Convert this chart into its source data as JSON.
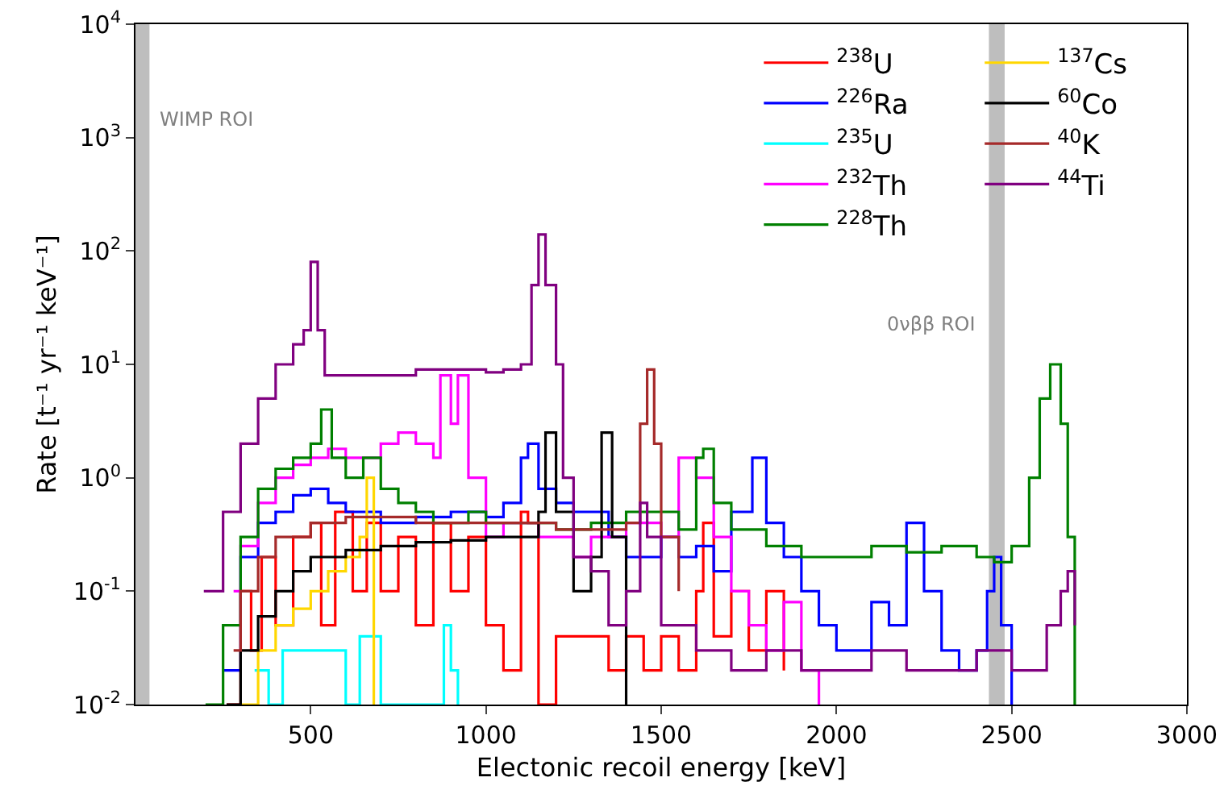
{
  "chart_data": {
    "type": "step",
    "xlabel": "Electonic recoil energy [keV]",
    "ylabel": "Rate [t⁻¹ yr⁻¹ keV⁻¹]",
    "log": "y",
    "xlim": [
      0,
      3000
    ],
    "xticks": [
      500,
      1000,
      1500,
      2000,
      2500,
      3000
    ],
    "ylim": [
      0.01,
      10000
    ],
    "yticks": [
      {
        "value": 0.01,
        "label": "10$^{-2}$"
      },
      {
        "value": 0.1,
        "label": "10$^{-1}$"
      },
      {
        "value": 1,
        "label": "10$^{0}$"
      },
      {
        "value": 10,
        "label": "10$^{1}$"
      },
      {
        "value": 100,
        "label": "10$^{2}$"
      },
      {
        "value": 1000,
        "label": "10$^{3}$"
      },
      {
        "value": 10000,
        "label": "10$^{4}$"
      }
    ],
    "grid": false,
    "legend": "top right",
    "bands": [
      {
        "axis": "x",
        "from": 0,
        "to": 40,
        "label": "WIMP ROI",
        "color": "#bebebe"
      },
      {
        "axis": "x",
        "from": 2435,
        "to": 2480,
        "label": "0νββ ROI",
        "color": "#bebebe"
      }
    ],
    "series": [
      {
        "name": "$^{238}$U",
        "color": "#ff0000",
        "x": [
          260,
          300,
          330,
          360,
          400,
          450,
          500,
          530,
          570,
          620,
          660,
          700,
          750,
          800,
          850,
          900,
          950,
          1000,
          1050,
          1100,
          1120,
          1150,
          1200,
          1300,
          1350,
          1400,
          1450,
          1500,
          1550,
          1600,
          1620,
          1650,
          1700,
          1750,
          1800,
          1850
        ],
        "values": [
          0.01,
          0.1,
          0.03,
          0.2,
          0.05,
          0.3,
          0.4,
          0.05,
          0.5,
          0.1,
          0.4,
          0.1,
          0.3,
          0.05,
          0.4,
          0.1,
          0.3,
          0.05,
          0.02,
          0.5,
          0.4,
          0.01,
          0.04,
          0.04,
          0.02,
          0.04,
          0.02,
          0.04,
          0.02,
          0.1,
          0.4,
          0.04,
          0.1,
          0.03,
          0.1,
          0.02
        ]
      },
      {
        "name": "$^{226}$Ra",
        "color": "#0000ff",
        "x": [
          250,
          300,
          350,
          400,
          450,
          500,
          550,
          600,
          700,
          800,
          900,
          1000,
          1050,
          1100,
          1120,
          1150,
          1200,
          1250,
          1300,
          1350,
          1400,
          1500,
          1550,
          1600,
          1650,
          1700,
          1760,
          1800,
          1850,
          1900,
          1950,
          2000,
          2050,
          2100,
          2150,
          2200,
          2250,
          2300,
          2350,
          2400,
          2430,
          2450,
          2470,
          2500
        ],
        "values": [
          0.02,
          0.2,
          0.4,
          0.5,
          0.7,
          0.8,
          0.6,
          0.5,
          0.4,
          0.45,
          0.5,
          0.45,
          0.6,
          1.5,
          2,
          0.8,
          0.6,
          0.5,
          0.5,
          0.3,
          0.2,
          0.3,
          0.2,
          0.25,
          0.15,
          0.5,
          1.5,
          0.4,
          0.2,
          0.1,
          0.05,
          0.03,
          0.03,
          0.08,
          0.05,
          0.4,
          0.1,
          0.03,
          0.02,
          0.03,
          0.1,
          0.2,
          0.05,
          0.01
        ]
      },
      {
        "name": "$^{235}$U",
        "color": "#00ffff",
        "x": [
          340,
          380,
          420,
          600,
          640,
          700,
          880,
          900,
          920
        ],
        "values": [
          0.02,
          0.01,
          0.03,
          0.01,
          0.04,
          0.01,
          0.05,
          0.02,
          0.01
        ]
      },
      {
        "name": "$^{232}$Th",
        "color": "#ff00ff",
        "x": [
          280,
          300,
          350,
          400,
          450,
          500,
          550,
          600,
          650,
          700,
          750,
          800,
          850,
          870,
          900,
          920,
          950,
          1000,
          1050,
          1100,
          1150,
          1200,
          1250,
          1300,
          1400,
          1500,
          1550,
          1600,
          1650,
          1700,
          1750,
          1800,
          1850,
          1900,
          1950
        ],
        "values": [
          0.1,
          0.25,
          0.6,
          1,
          1.3,
          1.5,
          1.8,
          1.5,
          1.5,
          2,
          2.5,
          2,
          1.5,
          8,
          3,
          8,
          1,
          0.3,
          0.4,
          0.4,
          0.3,
          0.3,
          0.2,
          0.3,
          0.4,
          0.3,
          1.5,
          1,
          0.3,
          0.1,
          0.05,
          0.03,
          0.08,
          0.02,
          0.01
        ]
      },
      {
        "name": "$^{228}$Th",
        "color": "#008000",
        "x": [
          200,
          250,
          300,
          350,
          400,
          450,
          500,
          530,
          560,
          600,
          650,
          700,
          750,
          800,
          850,
          900,
          950,
          1000,
          1100,
          1200,
          1300,
          1400,
          1500,
          1550,
          1600,
          1620,
          1650,
          1700,
          1800,
          1900,
          2000,
          2100,
          2200,
          2300,
          2400,
          2450,
          2500,
          2550,
          2580,
          2610,
          2640,
          2660,
          2680
        ],
        "values": [
          0.01,
          0.05,
          0.3,
          0.8,
          1.2,
          1.5,
          2,
          4,
          1.5,
          1,
          1.5,
          0.8,
          0.6,
          0.5,
          0.4,
          0.4,
          0.5,
          0.4,
          0.4,
          0.35,
          0.4,
          0.5,
          0.5,
          0.35,
          1.5,
          1.8,
          0.6,
          0.35,
          0.25,
          0.2,
          0.2,
          0.25,
          0.22,
          0.25,
          0.2,
          0.18,
          0.25,
          1,
          5,
          10,
          3,
          0.3,
          0.01
        ]
      },
      {
        "name": "$^{137}$Cs",
        "color": "#ffd700",
        "x": [
          300,
          350,
          400,
          450,
          500,
          550,
          600,
          640,
          660,
          680
        ],
        "values": [
          0.01,
          0.03,
          0.05,
          0.07,
          0.1,
          0.15,
          0.2,
          0.3,
          1,
          0.01
        ]
      },
      {
        "name": "$^{60}$Co",
        "color": "#000000",
        "x": [
          260,
          300,
          350,
          400,
          450,
          500,
          600,
          700,
          800,
          900,
          1000,
          1100,
          1150,
          1170,
          1200,
          1250,
          1300,
          1330,
          1360,
          1400
        ],
        "values": [
          0.01,
          0.03,
          0.06,
          0.1,
          0.15,
          0.2,
          0.23,
          0.25,
          0.27,
          0.28,
          0.3,
          0.3,
          0.5,
          2.5,
          0.5,
          0.1,
          0.2,
          2.5,
          0.3,
          0.01
        ]
      },
      {
        "name": "$^{40}$K",
        "color": "#a52a2a",
        "x": [
          280,
          300,
          350,
          400,
          500,
          600,
          700,
          800,
          900,
          1000,
          1100,
          1200,
          1300,
          1400,
          1440,
          1460,
          1480,
          1500,
          1550
        ],
        "values": [
          0.03,
          0.1,
          0.2,
          0.3,
          0.4,
          0.45,
          0.45,
          0.4,
          0.4,
          0.4,
          0.4,
          0.35,
          0.35,
          0.4,
          3,
          9,
          2,
          0.3,
          0.1
        ]
      },
      {
        "name": "$^{44}$Ti",
        "color": "#800080",
        "x": [
          195,
          250,
          300,
          350,
          400,
          450,
          480,
          500,
          520,
          540,
          600,
          700,
          800,
          900,
          1000,
          1050,
          1100,
          1130,
          1150,
          1170,
          1200,
          1220,
          1250,
          1300,
          1350,
          1400,
          1440,
          1460,
          1500,
          1600,
          1700,
          1800,
          1900,
          2000,
          2100,
          2200,
          2300,
          2400,
          2500,
          2600,
          2640,
          2660,
          2680
        ],
        "values": [
          0.1,
          0.5,
          2,
          5,
          10,
          15,
          20,
          80,
          20,
          8,
          8,
          8,
          9,
          9,
          8.5,
          9,
          10,
          50,
          140,
          50,
          10,
          1,
          0.2,
          0.15,
          0.05,
          0.1,
          0.6,
          0.3,
          0.05,
          0.03,
          0.02,
          0.03,
          0.02,
          0.02,
          0.03,
          0.02,
          0.02,
          0.03,
          0.02,
          0.05,
          0.1,
          0.15,
          0.05
        ]
      }
    ]
  }
}
